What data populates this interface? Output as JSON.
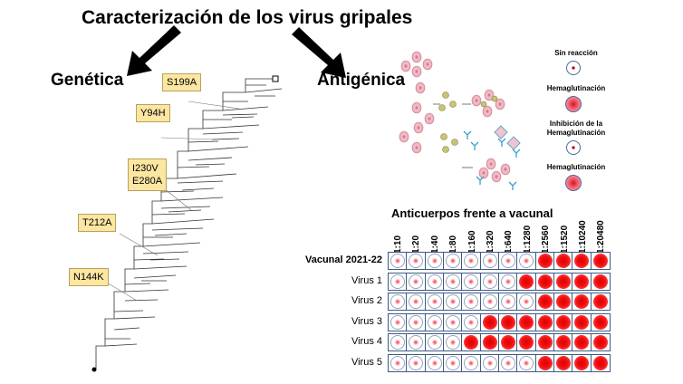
{
  "title": "Caracterización de los virus gripales",
  "genetica": {
    "label": "Genética",
    "mutations": [
      "S199A",
      "Y94H",
      "I230V",
      "E280A",
      "T212A",
      "N144K"
    ]
  },
  "antigenica": {
    "label": "Antigénica",
    "legend": {
      "sin_reaccion": "Sin reacción",
      "hemaglutinacion_1": "Hemaglutinación",
      "inhibicion_1": "Inhibición de la",
      "inhibicion_2": "Hemaglutinación",
      "hemaglutinacion_2": "Hemaglutinación"
    },
    "assay_title": "Anticuerpos frente a vacunal",
    "dilutions": [
      "1:10",
      "1:20",
      "1:40",
      "1:80",
      "1:160",
      "1:320",
      "1:640",
      "1:1280",
      "1:2560",
      "1:1520",
      "1:10240",
      "1:20480"
    ],
    "rows": [
      {
        "label": "Vacunal 2021-22",
        "positive_from": 8
      },
      {
        "label": "Virus 1",
        "positive_from": 7
      },
      {
        "label": "Virus 2",
        "positive_from": 8
      },
      {
        "label": "Virus 3",
        "positive_from": 5
      },
      {
        "label": "Virus 4",
        "positive_from": 4
      },
      {
        "label": "Virus 5",
        "positive_from": 8
      }
    ],
    "colors": {
      "positive": "#e60000",
      "plate_border": "#3b5b86"
    }
  }
}
